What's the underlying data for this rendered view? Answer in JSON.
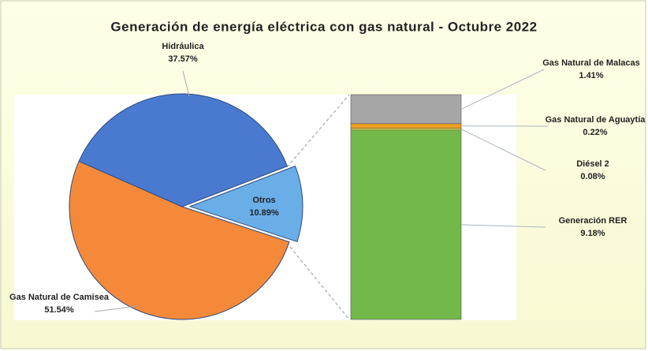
{
  "chart_data": {
    "type": "pie",
    "title": "Generación de energía eléctrica con gas natural - Octubre 2022",
    "categories": [
      "Otros",
      "Gas Natural de Camisea",
      "Hidráulica"
    ],
    "values": [
      10.89,
      51.54,
      37.57
    ],
    "value_labels": [
      "10.89%",
      "51.54%",
      "37.57%"
    ],
    "colors": [
      "#6aaee8",
      "#f5893a",
      "#4a7ad0"
    ],
    "breakdown": {
      "type": "stacked-bar",
      "categories": [
        "Gas Natural de Malacas",
        "Gas Natural de Aguaytía",
        "Diésel 2",
        "Generación RER"
      ],
      "values": [
        1.41,
        0.22,
        0.08,
        9.18
      ],
      "value_labels": [
        "1.41%",
        "0.22%",
        "0.08%",
        "9.18%"
      ],
      "colors": [
        "#a6a6a6",
        "#f0a020",
        "#f2e040",
        "#72b84a"
      ]
    }
  }
}
